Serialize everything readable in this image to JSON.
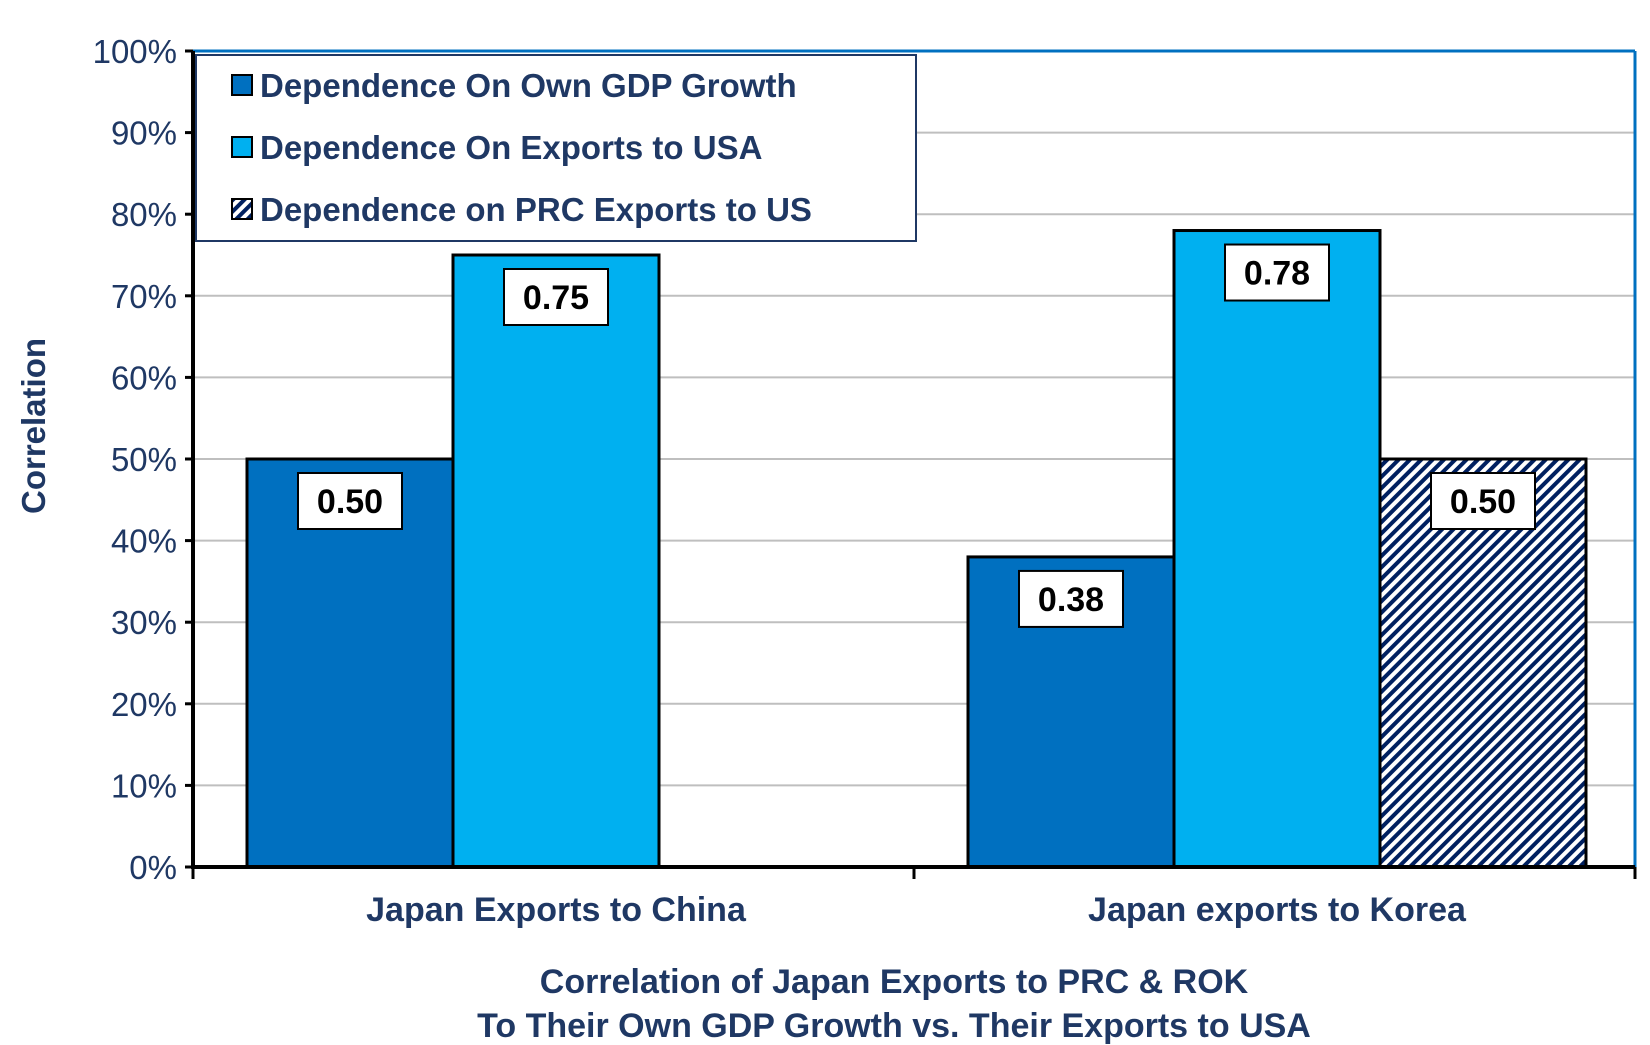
{
  "chart_data": {
    "type": "bar",
    "categories": [
      "Japan Exports to China",
      "Japan exports to Korea"
    ],
    "series": [
      {
        "name": "Dependence On Own GDP Growth",
        "values": [
          0.5,
          0.38
        ],
        "labels": [
          "0.50",
          "0.38"
        ],
        "color": "#0070C0",
        "pattern": "solid"
      },
      {
        "name": "Dependence On Exports to USA",
        "values": [
          0.75,
          0.78
        ],
        "labels": [
          "0.75",
          "0.78"
        ],
        "color": "#00B0F0",
        "pattern": "solid"
      },
      {
        "name": "Dependence on PRC Exports to US",
        "values": [
          null,
          0.5
        ],
        "labels": [
          null,
          "0.50"
        ],
        "color": "#002060",
        "pattern": "diagonal-stripes"
      }
    ],
    "ylabel": "Correlation",
    "ylim": [
      0,
      1.0
    ],
    "yticks": [
      "0%",
      "10%",
      "20%",
      "30%",
      "40%",
      "50%",
      "60%",
      "70%",
      "80%",
      "90%",
      "100%"
    ],
    "xlabel_lines": [
      "Correlation of Japan Exports to PRC & ROK",
      "To Their Own GDP Growth vs. Their Exports to USA"
    ],
    "grid": true,
    "legend_position": "top-left",
    "colors": {
      "text": "#1F3864",
      "plot_border": "#0070C0",
      "grid": "#BFBFBF",
      "bar_outline": "#000000"
    }
  }
}
